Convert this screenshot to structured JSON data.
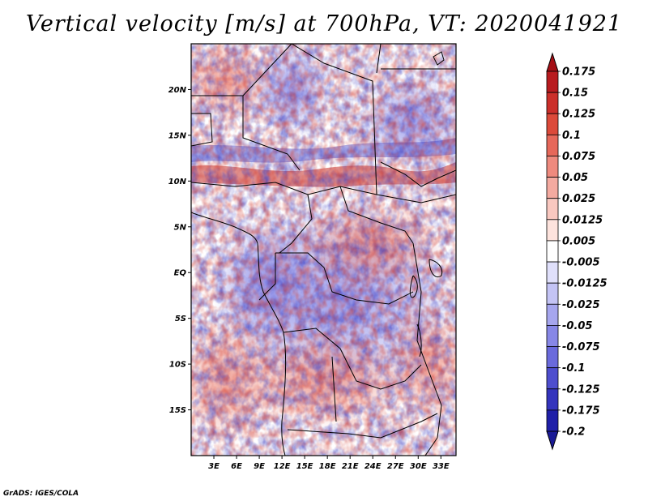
{
  "title": "Vertical velocity [m/s] at 700hPa, VT: 2020041921",
  "credit": "GrADS: IGES/COLA",
  "map": {
    "lon_range": [
      0,
      35
    ],
    "lat_range": [
      -20,
      25
    ],
    "lat_ticks": [
      {
        "value": 20,
        "label": "20N"
      },
      {
        "value": 15,
        "label": "15N"
      },
      {
        "value": 10,
        "label": "10N"
      },
      {
        "value": 5,
        "label": "5N"
      },
      {
        "value": 0,
        "label": "EQ"
      },
      {
        "value": -5,
        "label": "5S"
      },
      {
        "value": -10,
        "label": "10S"
      },
      {
        "value": -15,
        "label": "15S"
      }
    ],
    "lon_ticks": [
      {
        "value": 3,
        "label": "3E"
      },
      {
        "value": 6,
        "label": "6E"
      },
      {
        "value": 9,
        "label": "9E"
      },
      {
        "value": 12,
        "label": "12E"
      },
      {
        "value": 15,
        "label": "15E"
      },
      {
        "value": 18,
        "label": "18E"
      },
      {
        "value": 21,
        "label": "21E"
      },
      {
        "value": 24,
        "label": "24E"
      },
      {
        "value": 27,
        "label": "27E"
      },
      {
        "value": 30,
        "label": "30E"
      },
      {
        "value": 33,
        "label": "33E"
      }
    ]
  },
  "colorbar": {
    "levels": [
      {
        "label": "0.175",
        "color": "#a50f15"
      },
      {
        "label": "0.15",
        "color": "#b81b1f"
      },
      {
        "label": "0.125",
        "color": "#cb2f2a"
      },
      {
        "label": "0.1",
        "color": "#dc4a3a"
      },
      {
        "label": "0.075",
        "color": "#e6685a"
      },
      {
        "label": "0.05",
        "color": "#ee8a7e"
      },
      {
        "label": "0.025",
        "color": "#f4aaa0"
      },
      {
        "label": "0.0125",
        "color": "#f9c8c0"
      },
      {
        "label": "0.005",
        "color": "#fde3dd"
      },
      {
        "label": "-0.005",
        "color": "#ffffff"
      },
      {
        "label": "-0.0125",
        "color": "#e0e0fb"
      },
      {
        "label": "-0.025",
        "color": "#c4c4f5"
      },
      {
        "label": "-0.05",
        "color": "#a6a6ee"
      },
      {
        "label": "-0.075",
        "color": "#8787e6"
      },
      {
        "label": "-0.1",
        "color": "#6a6adc"
      },
      {
        "label": "-0.125",
        "color": "#4e4ece"
      },
      {
        "label": "-0.175",
        "color": "#3434bd"
      },
      {
        "label": "-0.2",
        "color": "#1f1fa8"
      }
    ],
    "top_color": "#a50f15",
    "bottom_color": "#1a1a96"
  }
}
